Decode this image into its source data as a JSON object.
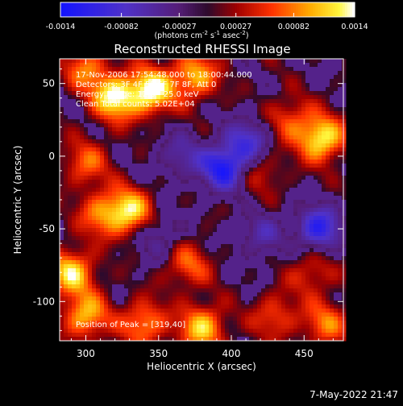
{
  "chart_data": {
    "type": "heatmap",
    "title": "Reconstructed RHESSI Image",
    "xlabel": "Heliocentric X (arcsec)",
    "ylabel": "Heliocentric Y (arcsec)",
    "xlim": [
      282,
      477
    ],
    "ylim": [
      -127,
      67
    ],
    "xticks": [
      300,
      350,
      400,
      450
    ],
    "yticks": [
      50,
      0,
      -50,
      -100
    ],
    "colorbar": {
      "range": [
        -0.0014,
        0.0014
      ],
      "ticks": [
        "-0.0014",
        "-0.00082",
        "-0.00027",
        "0.00027",
        "0.00082",
        "0.0014"
      ],
      "unit_base": "(photons cm",
      "unit_exp1": "-2",
      "unit_mid": " s",
      "unit_exp2": "-1",
      "unit_mid2": " asec",
      "unit_exp3": "-2",
      "unit_end": ")"
    },
    "annotations": {
      "time": "17-Nov-2006 17:54:48.000 to 18:00:44.000",
      "detectors": "Detectors: 3F 4F 5F 6F 7F 8F, Att 0",
      "energy": "Energy Range: 12.0 - 25.0 keV",
      "clean": "Clean     Total counts: 5.02E+04",
      "peak": "Position of Peak = [319,40]"
    },
    "sources": [
      {
        "x": 345,
        "y": 45,
        "amp": 1.0
      },
      {
        "x": 320,
        "y": 40,
        "amp": 0.95
      },
      {
        "x": 375,
        "y": 55,
        "amp": 0.75
      },
      {
        "x": 300,
        "y": 60,
        "amp": 0.55
      },
      {
        "x": 462,
        "y": 12,
        "amp": 0.95
      },
      {
        "x": 440,
        "y": 25,
        "amp": 0.45
      },
      {
        "x": 300,
        "y": -5,
        "amp": 0.5
      },
      {
        "x": 330,
        "y": -38,
        "amp": 0.85
      },
      {
        "x": 310,
        "y": -40,
        "amp": 0.55
      },
      {
        "x": 420,
        "y": -10,
        "amp": 0.35
      },
      {
        "x": 290,
        "y": -80,
        "amp": 0.85
      },
      {
        "x": 370,
        "y": -75,
        "amp": 0.5
      },
      {
        "x": 300,
        "y": -110,
        "amp": 0.75
      },
      {
        "x": 340,
        "y": -115,
        "amp": 0.65
      },
      {
        "x": 380,
        "y": -118,
        "amp": 0.8
      },
      {
        "x": 430,
        "y": -110,
        "amp": 0.45
      },
      {
        "x": 465,
        "y": -115,
        "amp": 0.55
      },
      {
        "x": 455,
        "y": -80,
        "amp": 0.4
      },
      {
        "x": 395,
        "y": -8,
        "amp": -0.9
      },
      {
        "x": 412,
        "y": 10,
        "amp": -0.6
      },
      {
        "x": 460,
        "y": -50,
        "amp": -0.8
      },
      {
        "x": 365,
        "y": 0,
        "amp": -0.4
      },
      {
        "x": 350,
        "y": -55,
        "amp": -0.35
      },
      {
        "x": 420,
        "y": -55,
        "amp": -0.4
      }
    ]
  },
  "footer": {
    "date": "7-May-2022 21:47"
  }
}
